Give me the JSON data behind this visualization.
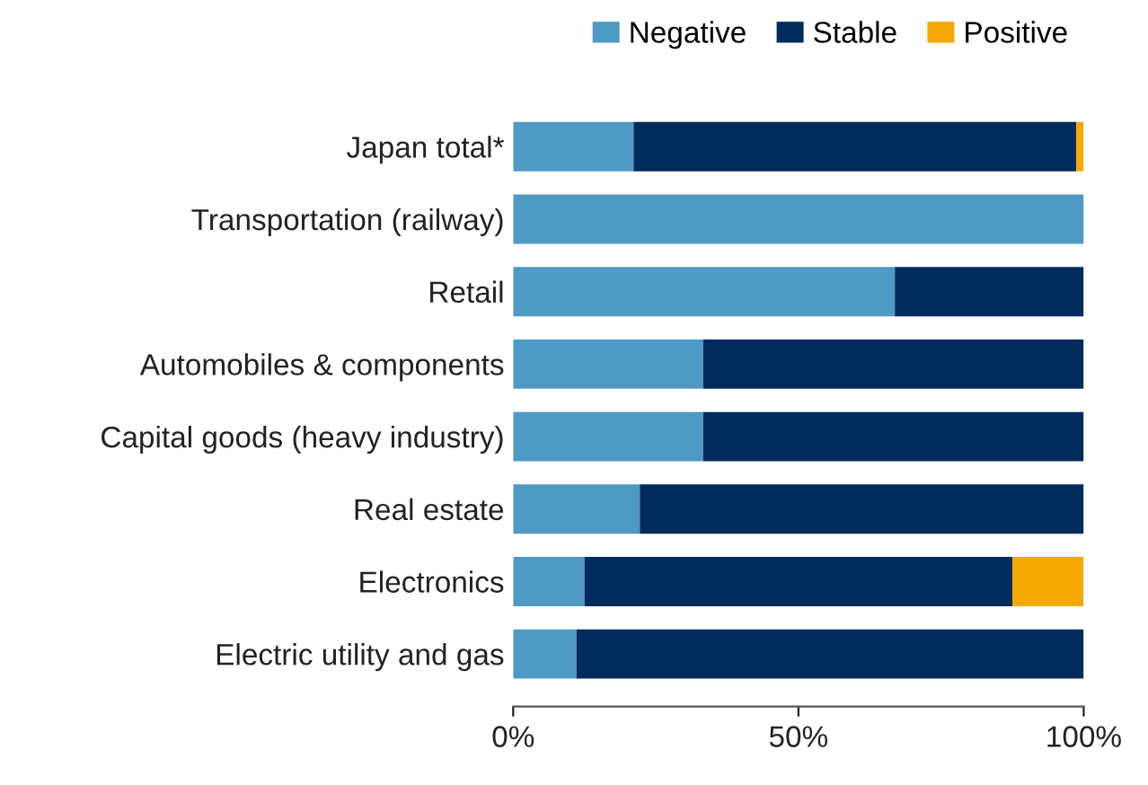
{
  "chart_data": {
    "type": "bar",
    "orientation": "horizontal",
    "stacked": true,
    "legend": "top right",
    "grid": false,
    "categories": [
      "Japan total*",
      "Transportation (railway)",
      "Retail",
      "Automobiles & components",
      "Capital goods (heavy industry)",
      "Real estate",
      "Electronics",
      "Electric utility and gas"
    ],
    "series": [
      {
        "name": "Negative",
        "color": "#4f9ac4",
        "values": [
          21.1,
          100,
          66.9,
          33.3,
          33.3,
          22.2,
          12.5,
          11.1
        ]
      },
      {
        "name": "Stable",
        "color": "#002b5c",
        "values": [
          77.6,
          0,
          33.1,
          66.7,
          66.7,
          77.8,
          75,
          88.9
        ]
      },
      {
        "name": "Positive",
        "color": "#f5a800",
        "values": [
          1.3,
          0,
          0,
          0,
          0,
          0,
          12.5,
          0
        ]
      }
    ],
    "xlim": [
      0,
      100
    ],
    "xticks": [
      {
        "value": 0,
        "label": "0%"
      },
      {
        "value": 50,
        "label": "50%"
      },
      {
        "value": 100,
        "label": "100%"
      }
    ]
  }
}
